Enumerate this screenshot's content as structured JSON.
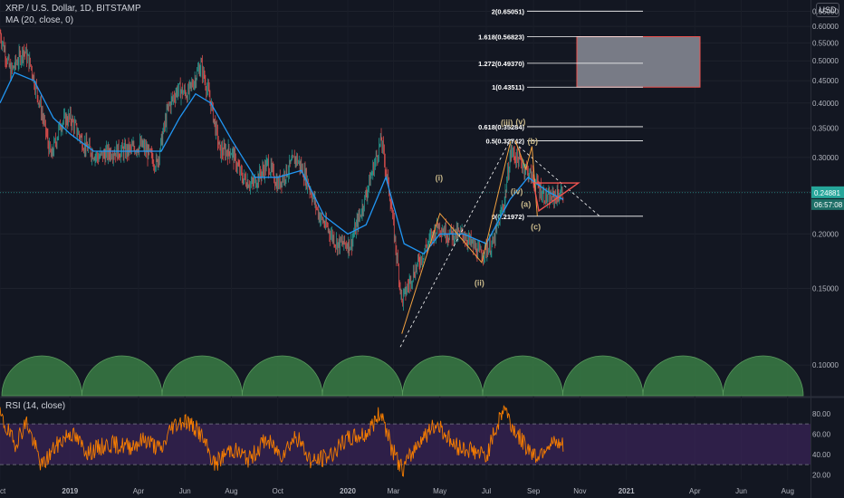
{
  "header": {
    "symbol_line": "XRP / U.S. Dollar, 1D, BITSTAMP",
    "ma_line": "MA (20, close, 0)",
    "currency": "USD"
  },
  "rsi_header": "RSI (14, close)",
  "price_badge": {
    "price": "0.24881",
    "countdown": "06:57:08"
  },
  "colors": {
    "background": "#131722",
    "up": "#26a69a",
    "down": "#ef5350",
    "ma": "#2196f3",
    "wave": "#c8b88a",
    "fib": "#ffffff",
    "target_box": "#787b86",
    "cycle": "#3a7d44",
    "rsi_line": "#f57c00",
    "rsi_band": "#3a2458",
    "triangle": "#ef5350"
  },
  "chart_data": [
    {
      "type": "line",
      "title": "XRP / U.S. Dollar, 1D, BITSTAMP",
      "y_scale": "log",
      "ylim": [
        0.085,
        0.69
      ],
      "y_ticks": [
        "0.65000",
        "0.60000",
        "0.55000",
        "0.50000",
        "0.45000",
        "0.40000",
        "0.35000",
        "0.30000",
        "0.25000",
        "0.20000",
        "0.15000",
        "0.10000"
      ],
      "x_ticks": [
        "Oct",
        "2019",
        "Apr",
        "Jun",
        "Aug",
        "Oct",
        "2020",
        "Mar",
        "May",
        "Jul",
        "Sep",
        "Nov",
        "2021",
        "Apr",
        "Jun",
        "Aug"
      ],
      "x_range": [
        "2018-10-01",
        "2021-08-31"
      ],
      "series": [
        {
          "name": "XRP / U.S. Dollar",
          "x": [
            "2018-10-01",
            "2018-10-15",
            "2018-11-01",
            "2018-11-10",
            "2018-11-25",
            "2018-12-07",
            "2018-12-20",
            "2019-01-01",
            "2019-01-20",
            "2019-02-07",
            "2019-02-25",
            "2019-03-15",
            "2019-04-05",
            "2019-04-25",
            "2019-05-10",
            "2019-05-22",
            "2019-06-05",
            "2019-06-22",
            "2019-07-05",
            "2019-07-17",
            "2019-08-01",
            "2019-08-15",
            "2019-08-29",
            "2019-09-18",
            "2019-10-01",
            "2019-10-25",
            "2019-11-07",
            "2019-11-25",
            "2019-12-18",
            "2020-01-05",
            "2020-01-20",
            "2020-02-14",
            "2020-02-26",
            "2020-03-12",
            "2020-03-25",
            "2020-04-15",
            "2020-04-29",
            "2020-05-12",
            "2020-06-01",
            "2020-06-22",
            "2020-07-10",
            "2020-07-25",
            "2020-08-02",
            "2020-08-18",
            "2020-09-05",
            "2020-09-20",
            "2020-10-10"
          ],
          "values": [
            0.58,
            0.47,
            0.53,
            0.49,
            0.38,
            0.3,
            0.36,
            0.37,
            0.32,
            0.3,
            0.31,
            0.31,
            0.32,
            0.29,
            0.39,
            0.43,
            0.42,
            0.49,
            0.4,
            0.31,
            0.31,
            0.27,
            0.26,
            0.29,
            0.26,
            0.3,
            0.27,
            0.22,
            0.19,
            0.19,
            0.23,
            0.33,
            0.24,
            0.14,
            0.16,
            0.19,
            0.21,
            0.2,
            0.2,
            0.18,
            0.19,
            0.24,
            0.31,
            0.29,
            0.26,
            0.24,
            0.249
          ]
        },
        {
          "name": "MA (20, close, 0)",
          "x": [
            "2018-10-01",
            "2018-10-20",
            "2018-11-15",
            "2018-12-10",
            "2019-01-01",
            "2019-02-01",
            "2019-03-01",
            "2019-04-01",
            "2019-05-01",
            "2019-05-25",
            "2019-06-15",
            "2019-07-05",
            "2019-08-01",
            "2019-09-01",
            "2019-10-01",
            "2019-11-01",
            "2019-12-01",
            "2020-01-01",
            "2020-01-25",
            "2020-02-20",
            "2020-03-15",
            "2020-04-10",
            "2020-05-01",
            "2020-06-01",
            "2020-07-01",
            "2020-08-01",
            "2020-08-25",
            "2020-09-20",
            "2020-10-10"
          ],
          "values": [
            0.4,
            0.47,
            0.45,
            0.37,
            0.34,
            0.31,
            0.31,
            0.31,
            0.31,
            0.37,
            0.42,
            0.4,
            0.33,
            0.27,
            0.27,
            0.28,
            0.22,
            0.2,
            0.21,
            0.27,
            0.19,
            0.18,
            0.2,
            0.2,
            0.19,
            0.24,
            0.27,
            0.25,
            0.24
          ]
        }
      ],
      "fib_levels": [
        {
          "label": "2(0.65051)",
          "value": 0.65051
        },
        {
          "label": "1.618(0.56823)",
          "value": 0.56823
        },
        {
          "label": "1.272(0.49370)",
          "value": 0.4937
        },
        {
          "label": "1(0.43511)",
          "value": 0.43511
        },
        {
          "label": "0.618(0.35284)",
          "value": 0.35284
        },
        {
          "label": "0.5(0.32742)",
          "value": 0.32742
        },
        {
          "label": "0(0.21972)",
          "value": 0.21972
        }
      ],
      "wave_labels": [
        "(i)",
        "(ii)",
        "(iii)",
        "(iv)",
        "(v)",
        "(a)",
        "(b)",
        "(c)"
      ],
      "current_price": 0.24881
    },
    {
      "type": "line",
      "title": "RSI (14, close)",
      "ylim": [
        15,
        95
      ],
      "y_ticks": [
        "80.00",
        "60.00",
        "40.00",
        "20.00"
      ],
      "bands": [
        30,
        70
      ],
      "series": [
        {
          "name": "RSI (14, close)",
          "x": [
            "2018-10-01",
            "2018-10-20",
            "2018-11-05",
            "2018-11-25",
            "2018-12-10",
            "2019-01-01",
            "2019-01-25",
            "2019-02-20",
            "2019-03-20",
            "2019-04-10",
            "2019-05-01",
            "2019-05-15",
            "2019-06-01",
            "2019-06-20",
            "2019-07-10",
            "2019-08-01",
            "2019-08-25",
            "2019-09-15",
            "2019-10-05",
            "2019-10-25",
            "2019-11-15",
            "2019-12-10",
            "2020-01-01",
            "2020-01-25",
            "2020-02-14",
            "2020-02-28",
            "2020-03-13",
            "2020-04-05",
            "2020-04-29",
            "2020-05-20",
            "2020-06-10",
            "2020-07-01",
            "2020-07-12",
            "2020-07-25",
            "2020-08-02",
            "2020-08-18",
            "2020-09-05",
            "2020-09-20",
            "2020-10-10"
          ],
          "values": [
            78,
            50,
            72,
            28,
            45,
            62,
            42,
            50,
            48,
            55,
            44,
            68,
            74,
            62,
            30,
            46,
            35,
            55,
            40,
            58,
            32,
            40,
            55,
            60,
            82,
            45,
            25,
            55,
            70,
            48,
            45,
            38,
            62,
            88,
            70,
            52,
            38,
            50,
            48
          ]
        }
      ]
    }
  ]
}
